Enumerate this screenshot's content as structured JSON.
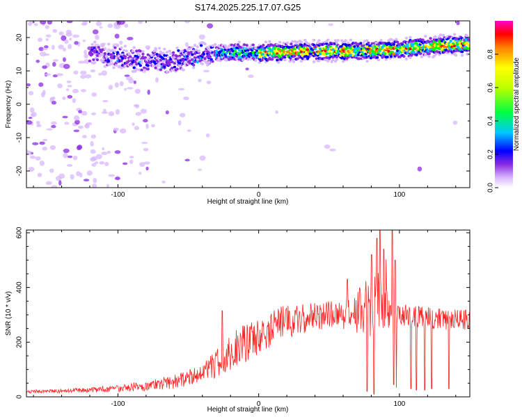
{
  "title": "S174.2025.225.17.07.G25",
  "chart_data": [
    {
      "type": "heatmap",
      "xlabel": "Height of straight line (km)",
      "ylabel": "Frequency (Hz)",
      "xlim": [
        -165,
        150
      ],
      "ylim": [
        -25,
        25
      ],
      "xticks": [
        -100,
        0,
        100
      ],
      "yticks": [
        -20,
        -10,
        0,
        10,
        20
      ],
      "colorbar": {
        "label": "Normalized spectral amplitude",
        "range": [
          0,
          1
        ],
        "ticks": [
          "0.0",
          "0.2",
          "0.4",
          "0.6",
          "0.8"
        ]
      },
      "ridge": {
        "description_free": true,
        "points": [
          [
            -115,
            15
          ],
          [
            -100,
            14
          ],
          [
            -80,
            13
          ],
          [
            -60,
            13
          ],
          [
            -40,
            15
          ],
          [
            -25,
            15.5
          ],
          [
            0,
            15.5
          ],
          [
            40,
            16
          ],
          [
            70,
            16
          ],
          [
            100,
            16.5
          ],
          [
            125,
            17.5
          ],
          [
            148,
            18
          ]
        ]
      },
      "colors": {
        "scale": [
          "#ffffff",
          "#d8b8ff",
          "#8a2be2",
          "#0000ff",
          "#00c0ff",
          "#00ff00",
          "#ffff00",
          "#ff8000",
          "#ff0000",
          "#ff00c0"
        ]
      }
    },
    {
      "type": "line",
      "xlabel": "Height of straight line (km)",
      "ylabel": "SNR (10 * v/v)",
      "xlim": [
        -165,
        150
      ],
      "ylim": [
        0,
        610
      ],
      "xticks": [
        -100,
        0,
        100
      ],
      "yticks": [
        0,
        200,
        400,
        600
      ],
      "color": "#ff2020",
      "envelope": [
        [
          -165,
          12,
          25
        ],
        [
          -140,
          14,
          30
        ],
        [
          -120,
          16,
          35
        ],
        [
          -100,
          18,
          45
        ],
        [
          -80,
          22,
          60
        ],
        [
          -60,
          30,
          80
        ],
        [
          -45,
          45,
          110
        ],
        [
          -35,
          60,
          150
        ],
        [
          -25,
          80,
          200
        ],
        [
          -15,
          110,
          250
        ],
        [
          0,
          150,
          290
        ],
        [
          15,
          200,
          330
        ],
        [
          30,
          230,
          340
        ],
        [
          50,
          250,
          350
        ],
        [
          65,
          240,
          360
        ],
        [
          80,
          220,
          450
        ],
        [
          90,
          250,
          500
        ],
        [
          100,
          260,
          340
        ],
        [
          120,
          250,
          330
        ],
        [
          148,
          240,
          320
        ]
      ],
      "spikes": [
        [
          -26,
          315
        ],
        [
          77,
          460
        ],
        [
          80,
          520
        ],
        [
          84,
          580
        ],
        [
          86,
          615
        ],
        [
          89,
          540
        ],
        [
          95,
          610
        ],
        [
          97,
          500
        ],
        [
          63,
          430
        ],
        [
          -30,
          150
        ]
      ],
      "dips": [
        [
          77,
          20
        ],
        [
          82,
          10
        ],
        [
          96,
          45
        ],
        [
          108,
          30
        ],
        [
          112,
          25
        ],
        [
          118,
          25
        ],
        [
          123,
          30
        ],
        [
          135,
          30
        ]
      ]
    }
  ]
}
